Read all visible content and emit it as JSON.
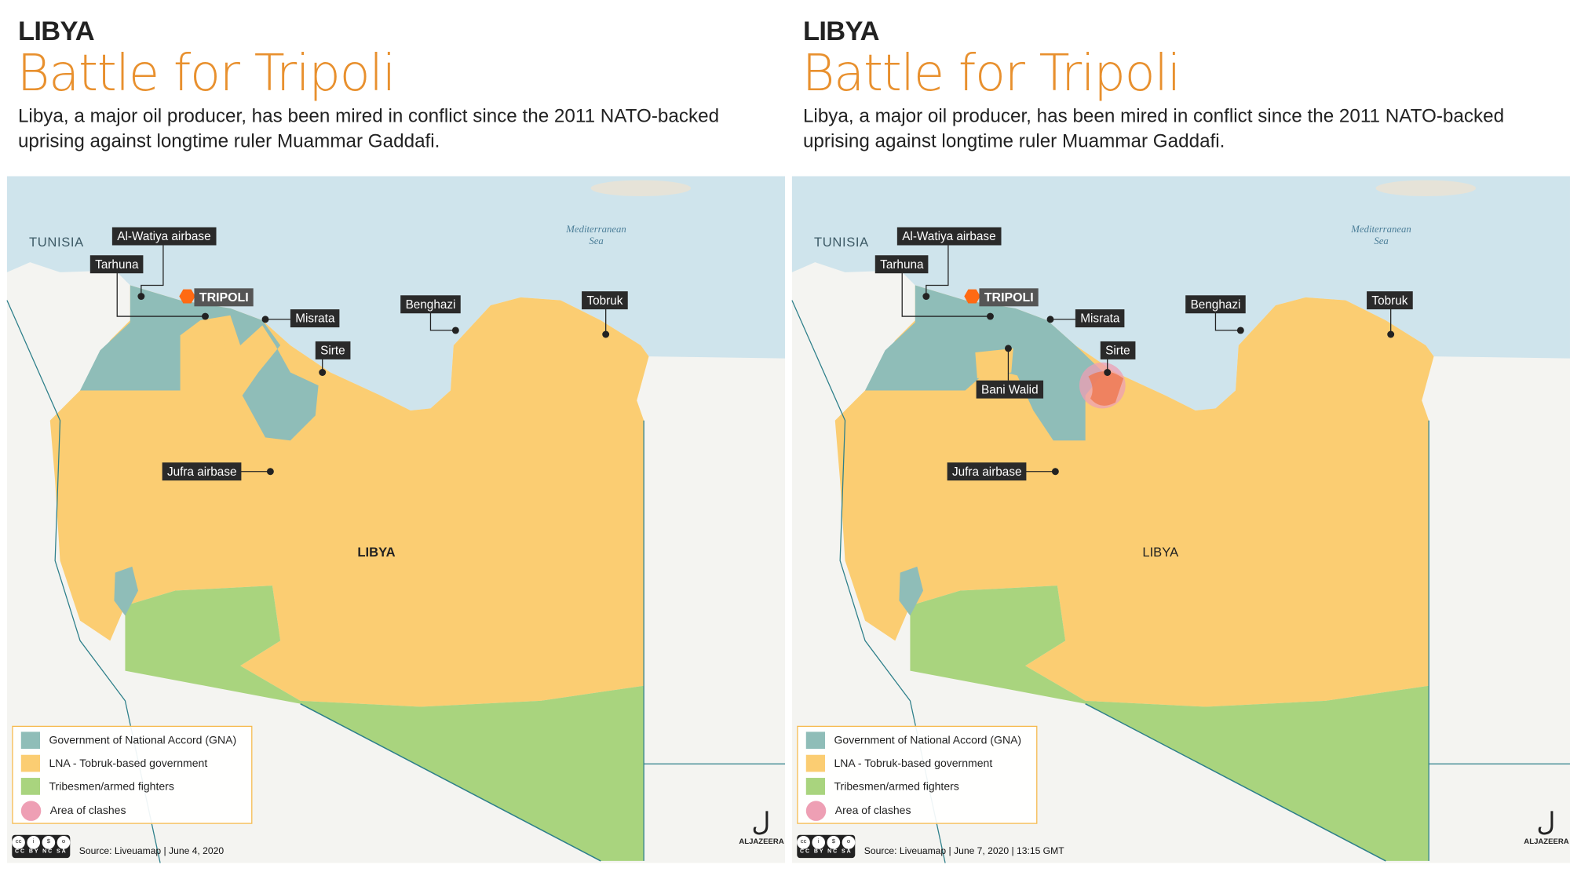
{
  "panels": [
    {
      "kicker": "LIBYA",
      "title": "Battle for Tripoli",
      "description": "Libya, a major oil producer, has been mired in conflict since the 2011 NATO-backed uprising against longtime ruler Muammar Gaddafi.",
      "map_labels": {
        "tunisia": "TUNISIA",
        "sea": "Mediterranean Sea",
        "libya": "LIBYA"
      },
      "places": {
        "al_watiya": "Al-Watiya airbase",
        "tarhuna": "Tarhuna",
        "tripoli": "TRIPOLI",
        "misrata": "Misrata",
        "sirte": "Sirte",
        "benghazi": "Benghazi",
        "tobruk": "Tobruk",
        "jufra": "Jufra airbase"
      },
      "source": "Source: Liveuamap |  June 4, 2020",
      "variant": "before"
    },
    {
      "kicker": "LIBYA",
      "title": "Battle for Tripoli",
      "description": "Libya, a major oil producer, has been mired in conflict since the 2011  NATO-backed uprising against longtime ruler Muammar Gaddafi.",
      "map_labels": {
        "tunisia": "TUNISIA",
        "sea": "Mediterranean Sea",
        "libya": "LIBYA"
      },
      "places": {
        "al_watiya": "Al-Watiya airbase",
        "tarhuna": "Tarhuna",
        "tripoli": "TRIPOLI",
        "misrata": "Misrata",
        "sirte": "Sirte",
        "benghazi": "Benghazi",
        "tobruk": "Tobruk",
        "jufra": "Jufra airbase",
        "bani_walid": "Bani Walid"
      },
      "source": "Source: Liveuamap  |  June 7, 2020   |   13:15 GMT",
      "variant": "after"
    }
  ],
  "legend": [
    {
      "label": "Government of National Accord (GNA)",
      "color": "#8fbdb8"
    },
    {
      "label": "LNA - Tobruk-based government",
      "color": "#fbcd72"
    },
    {
      "label": "Tribesmen/armed fighters",
      "color": "#a9d47e"
    },
    {
      "label": "Area of clashes",
      "color": "#ee9fb4"
    }
  ],
  "license": "CC BY NC SA",
  "brand": "ALJAZEERA",
  "colors": {
    "accent": "#e8902e",
    "sea": "#cfe4ec",
    "gna": "#8fbdb8",
    "lna": "#fbcd72",
    "tribes": "#a9d47e",
    "clash": "#ee9fb4",
    "tripoli_marker": "#ff6a13"
  }
}
